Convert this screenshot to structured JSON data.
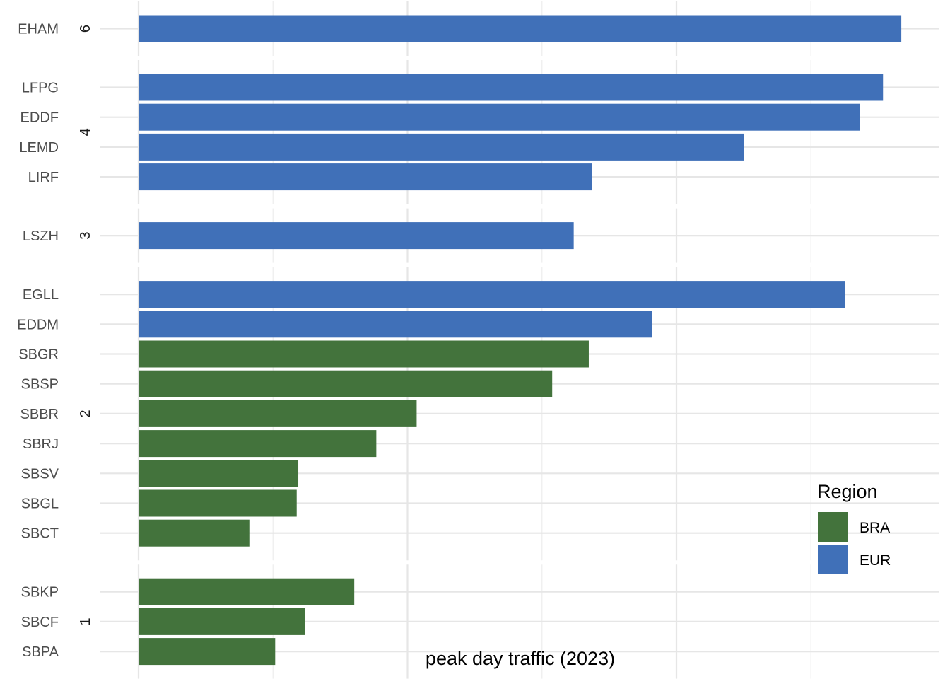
{
  "chart_data": {
    "type": "bar",
    "orientation": "horizontal",
    "xlabel": "peak day traffic (2023)",
    "ylabel": "",
    "xlim": [
      -70,
      1490
    ],
    "x_ticks": [
      0,
      500,
      1000
    ],
    "grid": true,
    "legend": {
      "title": "Region",
      "placement": "bottom-right",
      "entries": [
        {
          "name": "BRA",
          "color": "#43733c"
        },
        {
          "name": "EUR",
          "color": "#4070b8"
        }
      ]
    },
    "facets": [
      {
        "label": "6",
        "bars": [
          {
            "airport": "EHAM",
            "value": 1418,
            "region": "EUR"
          }
        ]
      },
      {
        "label": "4",
        "bars": [
          {
            "airport": "LFPG",
            "value": 1384,
            "region": "EUR"
          },
          {
            "airport": "EDDF",
            "value": 1341,
            "region": "EUR"
          },
          {
            "airport": "LEMD",
            "value": 1125,
            "region": "EUR"
          },
          {
            "airport": "LIRF",
            "value": 843,
            "region": "EUR"
          }
        ]
      },
      {
        "label": "3",
        "bars": [
          {
            "airport": "LSZH",
            "value": 809,
            "region": "EUR"
          }
        ]
      },
      {
        "label": "2",
        "bars": [
          {
            "airport": "EGLL",
            "value": 1313,
            "region": "EUR"
          },
          {
            "airport": "EDDM",
            "value": 954,
            "region": "EUR"
          },
          {
            "airport": "SBGR",
            "value": 837,
            "region": "BRA"
          },
          {
            "airport": "SBSP",
            "value": 769,
            "region": "BRA"
          },
          {
            "airport": "SBBR",
            "value": 517,
            "region": "BRA"
          },
          {
            "airport": "SBRJ",
            "value": 442,
            "region": "BRA"
          },
          {
            "airport": "SBSV",
            "value": 297,
            "region": "BRA"
          },
          {
            "airport": "SBGL",
            "value": 294,
            "region": "BRA"
          },
          {
            "airport": "SBCT",
            "value": 206,
            "region": "BRA"
          }
        ]
      },
      {
        "label": "1",
        "bars": [
          {
            "airport": "SBKP",
            "value": 401,
            "region": "BRA"
          },
          {
            "airport": "SBCF",
            "value": 309,
            "region": "BRA"
          },
          {
            "airport": "SBPA",
            "value": 254,
            "region": "BRA"
          }
        ]
      }
    ]
  }
}
